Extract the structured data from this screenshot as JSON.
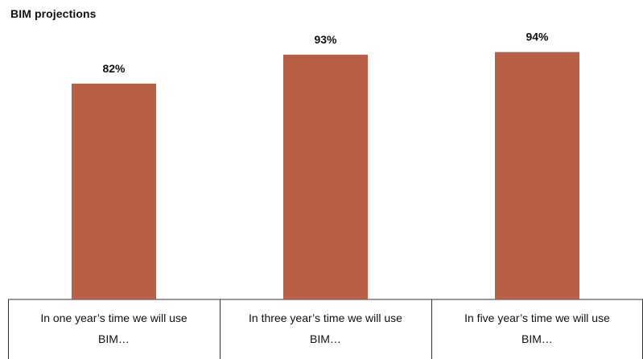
{
  "chart_data": {
    "type": "bar",
    "title": "BIM projections",
    "categories": [
      [
        "In one year’s time we will use",
        "BIM…"
      ],
      [
        "In three year’s time we will use",
        "BIM…"
      ],
      [
        "In five year’s time we will use",
        "BIM…"
      ]
    ],
    "values": [
      82,
      93,
      94
    ],
    "value_labels": [
      "82%",
      "93%",
      "94%"
    ],
    "ylim": [
      0,
      100
    ],
    "bar_color": "#b85f45",
    "axis_color": "#333333",
    "grid": false,
    "legend": "none"
  }
}
